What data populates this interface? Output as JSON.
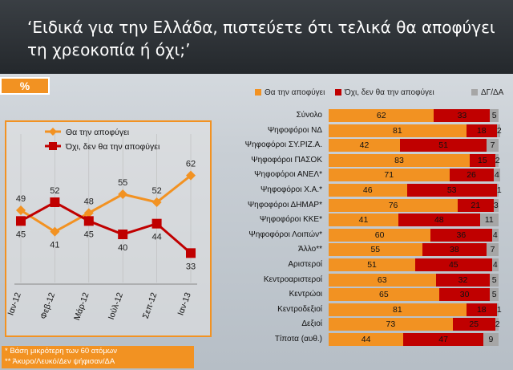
{
  "header": {
    "title": "‘Ειδικά για την Ελλάδα, πιστεύετε ότι τελικά θα αποφύγει τη χρεοκοπία ή όχι;’"
  },
  "pct_label": "%",
  "notes": [
    "*  Βάση μικρότερη των 60 ατόμων",
    "** Άκυρο/Λευκό/Δεν ψήφισαν/ΔΑ"
  ],
  "colors": {
    "orange": "#f29222",
    "red": "#c00000",
    "gray": "#a6a6a6"
  },
  "chart_data": [
    {
      "type": "line",
      "x": [
        "Ιαν-12",
        "Φεβ-12",
        "Μάρ-12",
        "Ιούλ-12",
        "Σεπ-12",
        "Ιαν-13"
      ],
      "series": [
        {
          "name": "Θα την αποφύγει",
          "values": [
            49,
            41,
            48,
            55,
            52,
            62
          ]
        },
        {
          "name": "Όχι, δεν θα την αποφύγει",
          "values": [
            45,
            52,
            45,
            40,
            44,
            33
          ]
        }
      ],
      "legend": "top-left"
    },
    {
      "type": "bar",
      "stacked": true,
      "orientation": "horizontal",
      "categories": [
        "Σύνολο",
        "Ψηφοφόροι ΝΔ",
        "Ψηφοφόροι ΣΥ.ΡΙΖ.Α.",
        "Ψηφοφόροι ΠΑΣΟΚ",
        "Ψηφοφόροι ΑΝΕΛ*",
        "Ψηφοφόροι Χ.Α.*",
        "Ψηφοφόροι ΔΗΜΑΡ*",
        "Ψηφοφόροι ΚΚΕ*",
        "Ψηφοφόροι Λοιπών*",
        "Άλλο**",
        "Αριστεροί",
        "Κεντροαριστεροί",
        "Κεντρώοι",
        "Κεντροδεξιοί",
        "Δεξιοί",
        "Τίποτα (αυθ.)"
      ],
      "series": [
        {
          "name": "Θα την αποφύγει",
          "values": [
            62,
            81,
            42,
            83,
            71,
            46,
            76,
            41,
            60,
            55,
            51,
            63,
            65,
            81,
            73,
            44
          ]
        },
        {
          "name": "Όχι, δεν θα την αποφύγει",
          "values": [
            33,
            18,
            51,
            15,
            26,
            53,
            21,
            48,
            36,
            38,
            45,
            32,
            30,
            18,
            25,
            47
          ]
        },
        {
          "name": "ΔΓ/ΔΑ",
          "values": [
            5,
            2,
            7,
            2,
            4,
            1,
            3,
            11,
            4,
            7,
            4,
            5,
            5,
            1,
            2,
            9
          ]
        }
      ],
      "legend": "top"
    }
  ]
}
